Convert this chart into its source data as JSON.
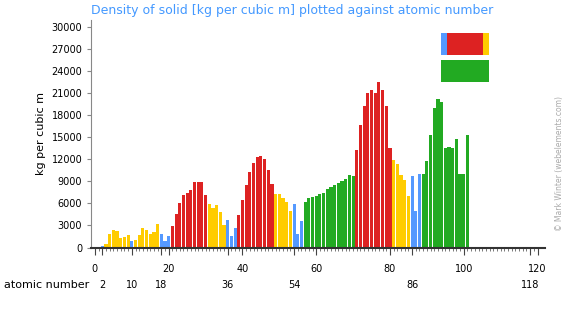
{
  "title": "Density of solid [kg per cubic m] plotted against atomic number",
  "ylabel": "kg per cubic m",
  "xlabel": "atomic number",
  "watermark": "© Mark Winter (webelements.com)",
  "title_color": "#4499ff",
  "yticks": [
    0,
    3000,
    6000,
    9000,
    12000,
    15000,
    18000,
    21000,
    24000,
    27000,
    30000
  ],
  "xticks_row1": [
    0,
    20,
    40,
    60,
    80,
    100,
    120
  ],
  "xticks_row2": [
    2,
    10,
    18,
    36,
    54,
    86,
    118
  ],
  "ylim": [
    0,
    31000
  ],
  "xlim": [
    -1,
    122
  ],
  "background_color": "#ffffff",
  "bar_width": 0.85,
  "densities": [
    90,
    180,
    534,
    1850,
    2340,
    2267,
    1251,
    1429,
    1696,
    900,
    971,
    1738,
    2698,
    2330,
    1823,
    2067,
    3214,
    1784,
    862,
    1550,
    2989,
    4540,
    6110,
    7190,
    7470,
    7874,
    8900,
    8908,
    8960,
    7133,
    5907,
    5323,
    5727,
    4819,
    3122,
    3749,
    1532,
    2630,
    4469,
    6511,
    8570,
    10220,
    11500,
    12370,
    12450,
    12023,
    10490,
    8650,
    7310,
    7287,
    6685,
    6232,
    4940,
    5887,
    1873,
    3594,
    6145,
    6770,
    6890,
    7008,
    7264,
    7353,
    7980,
    8229,
    8550,
    8795,
    9066,
    9321,
    9840,
    9747,
    13310,
    16654,
    19300,
    21020,
    21450,
    21090,
    22590,
    21460,
    19300,
    13534,
    11850,
    11340,
    9807,
    9196,
    7070,
    9780,
    5000,
    10070,
    10070,
    11720,
    15370,
    19050,
    20250,
    19840,
    13510,
    13670,
    13510,
    14790,
    10070,
    9940,
    15370,
    0,
    0,
    0,
    0,
    0,
    0,
    0,
    0,
    0,
    0,
    0,
    0,
    0,
    0,
    0,
    0,
    0
  ],
  "s_block": [
    1,
    2,
    3,
    4,
    11,
    12,
    19,
    20,
    37,
    38,
    55,
    56,
    87,
    88
  ],
  "p_block": [
    5,
    6,
    7,
    8,
    9,
    10,
    13,
    14,
    15,
    16,
    17,
    18,
    31,
    32,
    33,
    34,
    35,
    36,
    49,
    50,
    51,
    52,
    53,
    54,
    81,
    82,
    83,
    84,
    85,
    86,
    113,
    114,
    115,
    116,
    117,
    118
  ],
  "d_block": [
    21,
    22,
    23,
    24,
    25,
    26,
    27,
    28,
    29,
    30,
    39,
    40,
    41,
    42,
    43,
    44,
    45,
    46,
    47,
    48,
    71,
    72,
    73,
    74,
    75,
    76,
    77,
    78,
    79,
    80,
    103,
    104,
    105,
    106,
    107,
    108,
    109,
    110,
    111,
    112
  ],
  "f_block": [
    57,
    58,
    59,
    60,
    61,
    62,
    63,
    64,
    65,
    66,
    67,
    68,
    69,
    70,
    89,
    90,
    91,
    92,
    93,
    94,
    95,
    96,
    97,
    98,
    99,
    100,
    101,
    102
  ],
  "noble_gases": [
    2,
    10,
    18,
    36,
    54,
    86
  ],
  "blue_elements": [
    1,
    2,
    19,
    20,
    37,
    38,
    55,
    56,
    87,
    88
  ],
  "color_yellow": "#ffcc00",
  "color_red": "#dd2222",
  "color_green": "#22aa22",
  "color_blue": "#5599ff",
  "color_spine": "#888888",
  "color_watermark": "#aaaaaa",
  "title_fontsize": 9,
  "axis_label_fontsize": 8,
  "tick_fontsize": 7
}
